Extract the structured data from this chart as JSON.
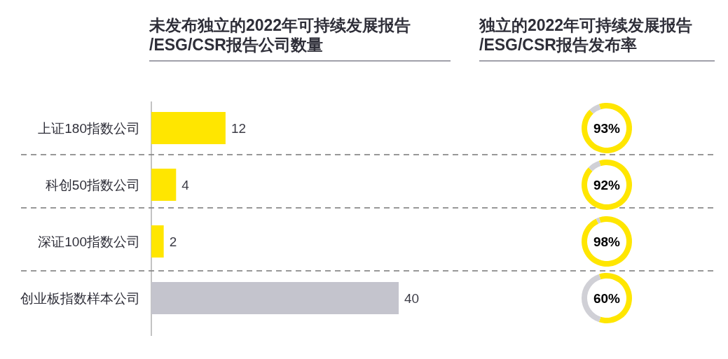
{
  "chart_data": [
    {
      "type": "bar",
      "orientation": "horizontal",
      "title": "未发布独立的2022年可持续发展报告\n/ESG/CSR报告公司数量",
      "categories": [
        "上证180指数公司",
        "科创50指数公司",
        "深证100指数公司",
        "创业板指数样本公司"
      ],
      "values": [
        12,
        4,
        2,
        40
      ],
      "colors": [
        "#ffe600",
        "#ffe600",
        "#ffe600",
        "#c4c4cd"
      ],
      "data_labels": true
    },
    {
      "type": "donut",
      "title": "独立的2022年可持续发展报告\n/ESG/CSR报告发布率",
      "categories": [
        null,
        null
      ],
      "values": [
        93,
        7
      ],
      "colors": [
        "#ffe600",
        "#d0d0d6"
      ],
      "annotations": [
        "93%"
      ]
    },
    {
      "type": "donut",
      "categories": [
        null,
        null
      ],
      "values": [
        92,
        8
      ],
      "colors": [
        "#ffe600",
        "#d0d0d6"
      ],
      "annotations": [
        "92%"
      ]
    },
    {
      "type": "donut",
      "categories": [
        null,
        null
      ],
      "values": [
        98,
        2
      ],
      "colors": [
        "#ffe600",
        "#d0d0d6"
      ],
      "annotations": [
        "98%"
      ]
    },
    {
      "type": "donut",
      "categories": [
        null,
        null
      ],
      "values": [
        60,
        40
      ],
      "colors": [
        "#ffe600",
        "#d0d0d6"
      ],
      "annotations": [
        "60%"
      ]
    }
  ]
}
